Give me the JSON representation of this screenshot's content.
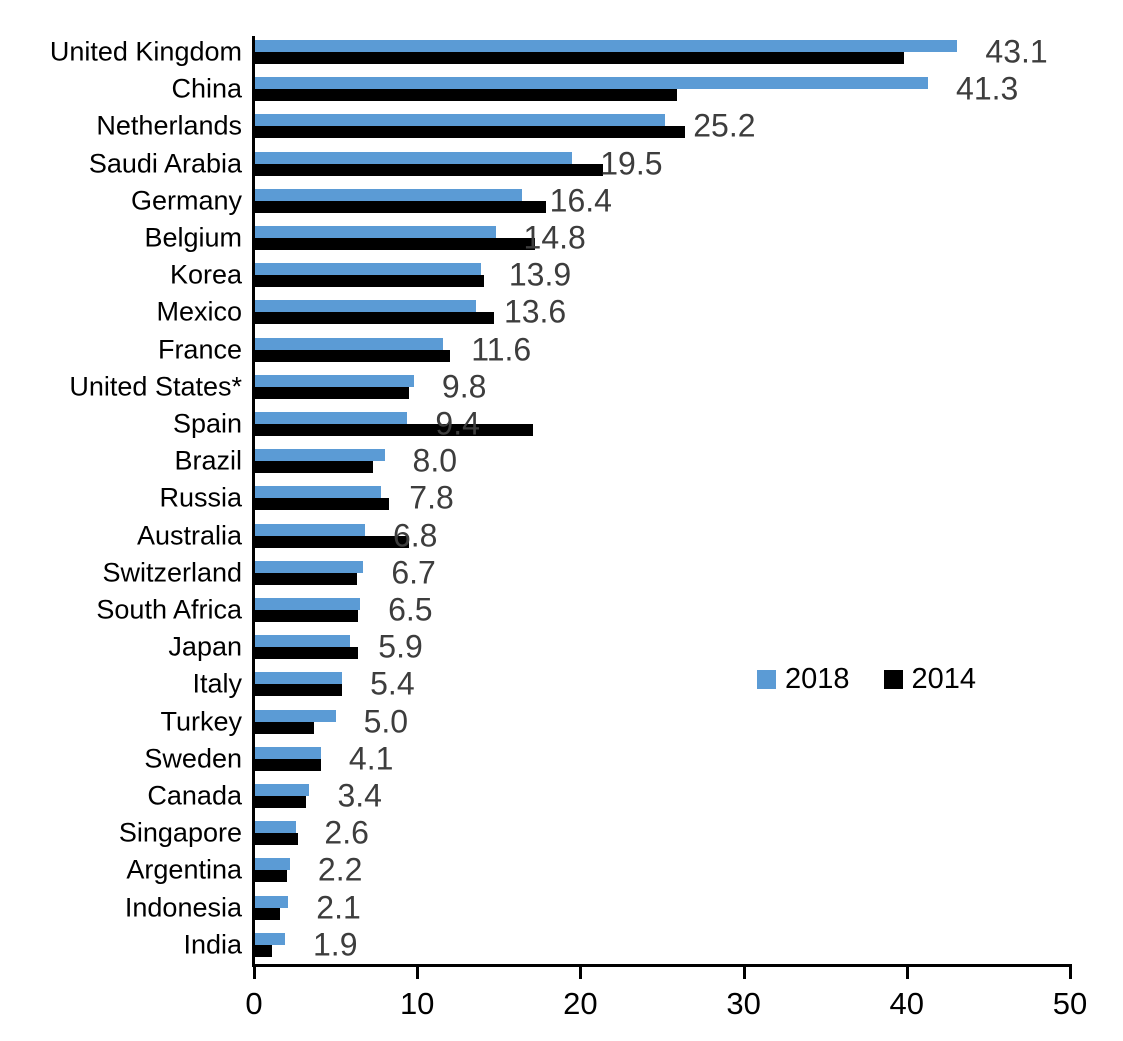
{
  "chart_data": {
    "type": "bar",
    "orientation": "horizontal",
    "title": "",
    "xlabel": "",
    "ylabel": "",
    "xlim": [
      0,
      50
    ],
    "x_ticks": [
      "0",
      "10",
      "20",
      "30",
      "40",
      "50"
    ],
    "grid": false,
    "legend_position": "middle-right",
    "categories": [
      "United Kingdom",
      "China",
      "Netherlands",
      "Saudi Arabia",
      "Germany",
      "Belgium",
      "Korea",
      "Mexico",
      "France",
      "United States*",
      "Spain",
      "Brazil",
      "Russia",
      "Australia",
      "Switzerland",
      "South Africa",
      "Japan",
      "Italy",
      "Turkey",
      "Sweden",
      "Canada",
      "Singapore",
      "Argentina",
      "Indonesia",
      "India"
    ],
    "series": [
      {
        "name": "2018",
        "color": "#5B9BD5",
        "values": [
          43.1,
          41.3,
          25.2,
          19.5,
          16.4,
          14.8,
          13.9,
          13.6,
          11.6,
          9.8,
          9.4,
          8.0,
          7.8,
          6.8,
          6.7,
          6.5,
          5.9,
          5.4,
          5.0,
          4.1,
          3.4,
          2.6,
          2.2,
          2.1,
          1.9
        ]
      },
      {
        "name": "2014",
        "color": "#000000",
        "values": [
          39.8,
          25.9,
          26.4,
          21.4,
          17.9,
          17.2,
          14.1,
          14.7,
          12.0,
          9.5,
          17.1,
          7.3,
          8.3,
          9.5,
          6.3,
          6.4,
          6.4,
          5.4,
          3.7,
          4.1,
          3.2,
          2.7,
          2.0,
          1.6,
          1.1
        ]
      }
    ],
    "value_labels": [
      "43.1",
      "41.3",
      "25.2",
      "19.5",
      "16.4",
      "14.8",
      "13.9",
      "13.6",
      "11.6",
      "9.8",
      "9.4",
      "8.0",
      "7.8",
      "6.8",
      "6.7",
      "6.5",
      "5.9",
      "5.4",
      "5.0",
      "4.1",
      "3.4",
      "2.6",
      "2.2",
      "2.1",
      "1.9"
    ],
    "value_label_series": "2018",
    "value_label_color": "#3D3D3D",
    "axis_color": "#000000"
  }
}
